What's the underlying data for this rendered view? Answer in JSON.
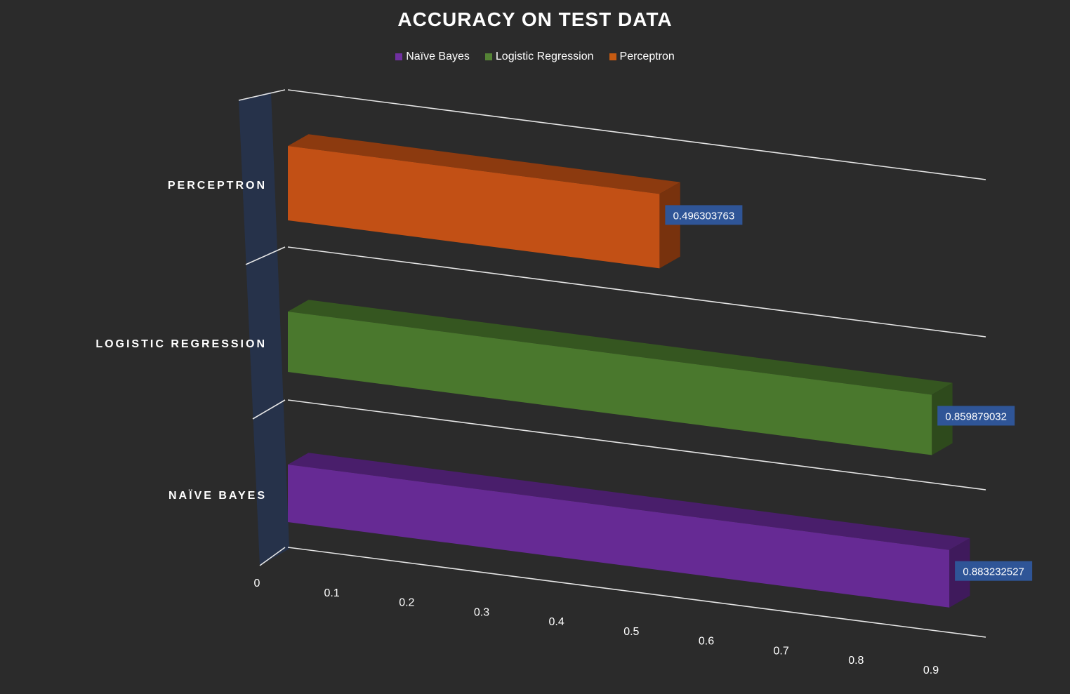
{
  "chart_data": {
    "type": "bar",
    "orientation": "horizontal",
    "title": "ACCURACY ON TEST DATA",
    "categories": [
      "NAÏVE BAYES",
      "LOGISTIC REGRESSION",
      "PERCEPTRON"
    ],
    "values": [
      0.883232527,
      0.859879032,
      0.496303763
    ],
    "data_labels": [
      "0.883232527",
      "0.859879032",
      "0.496303763"
    ],
    "colors": [
      "#662a94",
      "#4a782d",
      "#c25015"
    ],
    "legend": {
      "position": "top",
      "entries": [
        {
          "name": "Naïve Bayes",
          "color": "#7030a0"
        },
        {
          "name": "Logistic Regression",
          "color": "#548235"
        },
        {
          "name": "Perceptron",
          "color": "#c55a11"
        }
      ]
    },
    "x_ticks": [
      "0",
      "0.1",
      "0.2",
      "0.3",
      "0.4",
      "0.5",
      "0.6",
      "0.7",
      "0.8",
      "0.9"
    ],
    "xlim": [
      0,
      0.9
    ],
    "grid": true,
    "style": "3d"
  }
}
